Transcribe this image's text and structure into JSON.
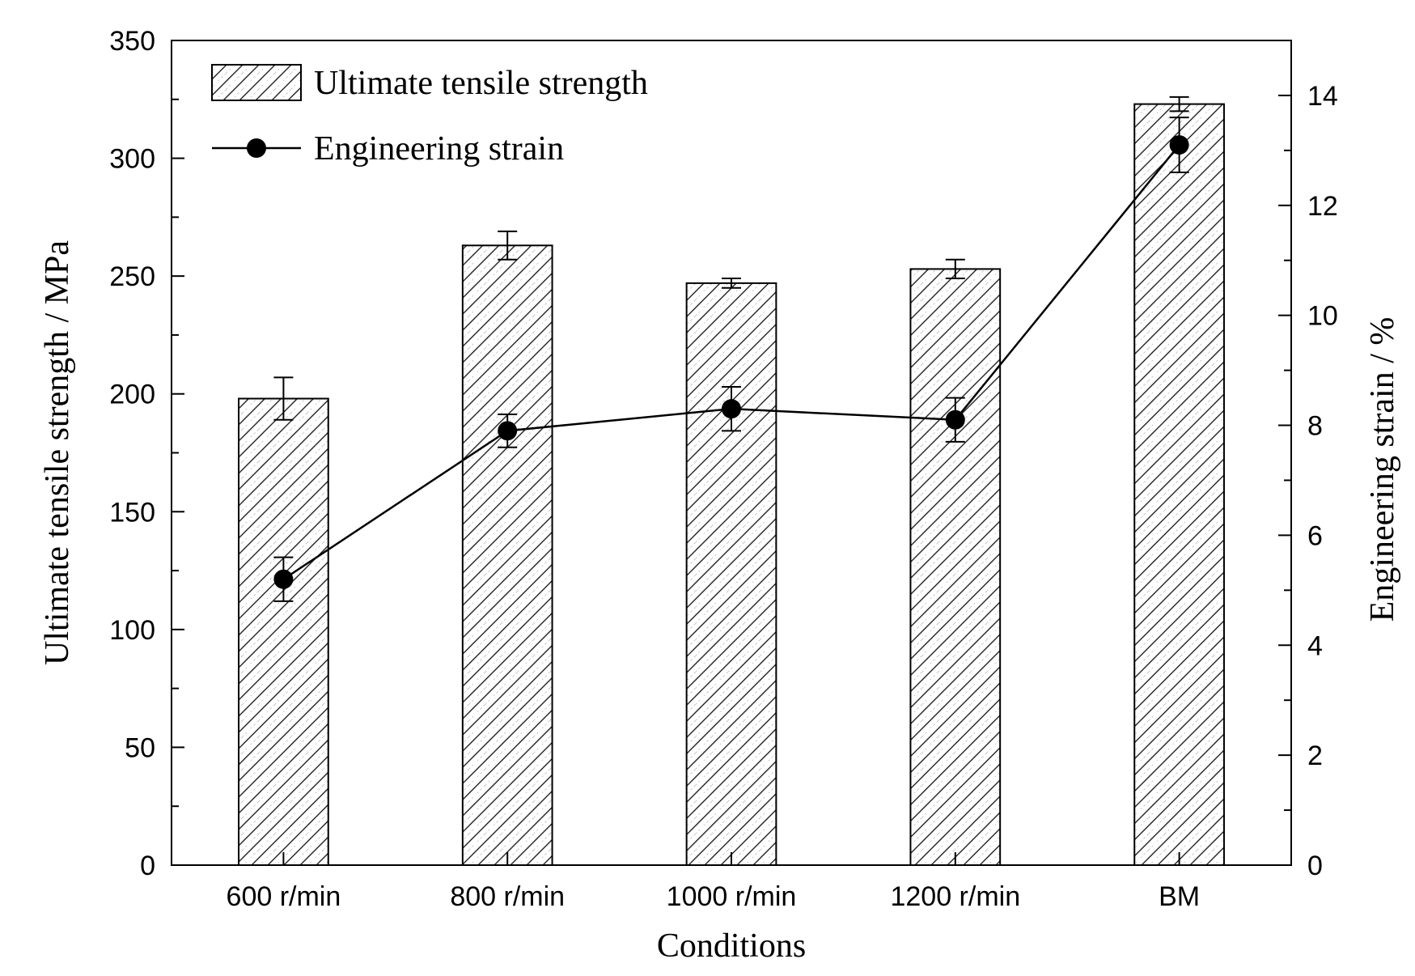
{
  "chart_data": {
    "type": "bar",
    "categories": [
      "600 r/min",
      "800 r/min",
      "1000 r/min",
      "1200 r/min",
      "BM"
    ],
    "xlabel": "Conditions",
    "ylabel": "Ultimate tensile strength / MPa",
    "ylabel_right": "Engineering strain / %",
    "ylim": [
      0,
      350
    ],
    "ylim_right": [
      0,
      15
    ],
    "yticks": [
      0,
      50,
      100,
      150,
      200,
      250,
      300,
      350
    ],
    "yticks_right": [
      0,
      2,
      4,
      6,
      8,
      10,
      12,
      14
    ],
    "series": [
      {
        "name": "Ultimate tensile strength",
        "kind": "bar",
        "axis": "left",
        "values": [
          198,
          263,
          247,
          253,
          323
        ],
        "errors": [
          9,
          6,
          2,
          4,
          3
        ]
      },
      {
        "name": "Engineering strain",
        "kind": "line",
        "axis": "right",
        "values": [
          5.2,
          7.9,
          8.3,
          8.1,
          13.1
        ],
        "errors": [
          0.4,
          0.3,
          0.4,
          0.4,
          0.5
        ]
      }
    ],
    "legend": "top-left"
  }
}
